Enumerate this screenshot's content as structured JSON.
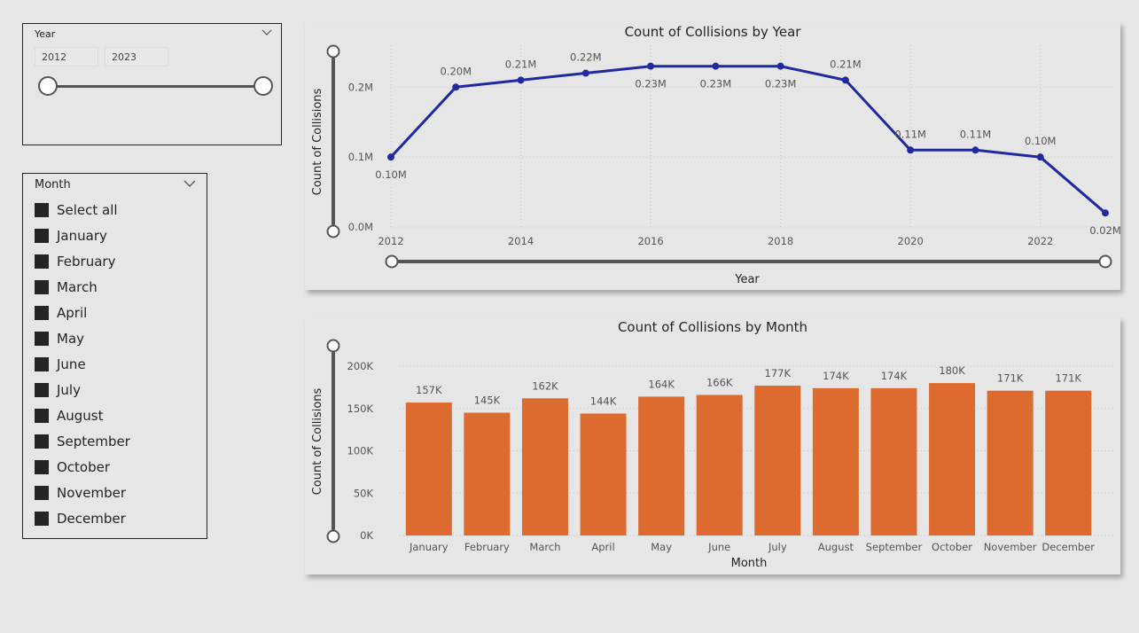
{
  "year_slicer": {
    "title": "Year",
    "from": "2012",
    "to": "2023"
  },
  "month_slicer": {
    "title": "Month",
    "items": [
      "Select all",
      "January",
      "February",
      "March",
      "April",
      "May",
      "June",
      "July",
      "August",
      "September",
      "October",
      "November",
      "December"
    ]
  },
  "colors": {
    "line": "#1f2aa0",
    "bar": "#dd6b2f"
  },
  "chart_data": [
    {
      "type": "line",
      "title": "Count of Collisions by Year",
      "xlabel": "Year",
      "ylabel": "Count of Collisions",
      "x": [
        2012,
        2013,
        2014,
        2015,
        2016,
        2017,
        2018,
        2019,
        2020,
        2021,
        2022,
        2023
      ],
      "values": [
        0.1,
        0.2,
        0.21,
        0.22,
        0.23,
        0.23,
        0.23,
        0.21,
        0.11,
        0.11,
        0.1,
        0.02
      ],
      "data_labels": [
        "0.10M",
        "0.20M",
        "0.21M",
        "0.22M",
        "0.23M",
        "0.23M",
        "0.23M",
        "0.21M",
        "0.11M",
        "0.11M",
        "0.10M",
        "0.02M"
      ],
      "x_ticks": [
        "2012",
        "2014",
        "2016",
        "2018",
        "2020",
        "2022"
      ],
      "y_ticks": [
        "0.0M",
        "0.1M",
        "0.2M"
      ],
      "ylim": [
        0,
        0.26
      ],
      "grid": true
    },
    {
      "type": "bar",
      "title": "Count of Collisions by Month",
      "xlabel": "Month",
      "ylabel": "Count of Collisions",
      "categories": [
        "January",
        "February",
        "March",
        "April",
        "May",
        "June",
        "July",
        "August",
        "September",
        "October",
        "November",
        "December"
      ],
      "values": [
        157,
        145,
        162,
        144,
        164,
        166,
        177,
        174,
        174,
        180,
        171,
        171
      ],
      "data_labels": [
        "157K",
        "145K",
        "162K",
        "144K",
        "164K",
        "166K",
        "177K",
        "174K",
        "174K",
        "180K",
        "171K",
        "171K"
      ],
      "y_ticks": [
        "0K",
        "50K",
        "100K",
        "150K",
        "200K"
      ],
      "ylim": [
        0,
        200
      ],
      "grid": true
    }
  ]
}
